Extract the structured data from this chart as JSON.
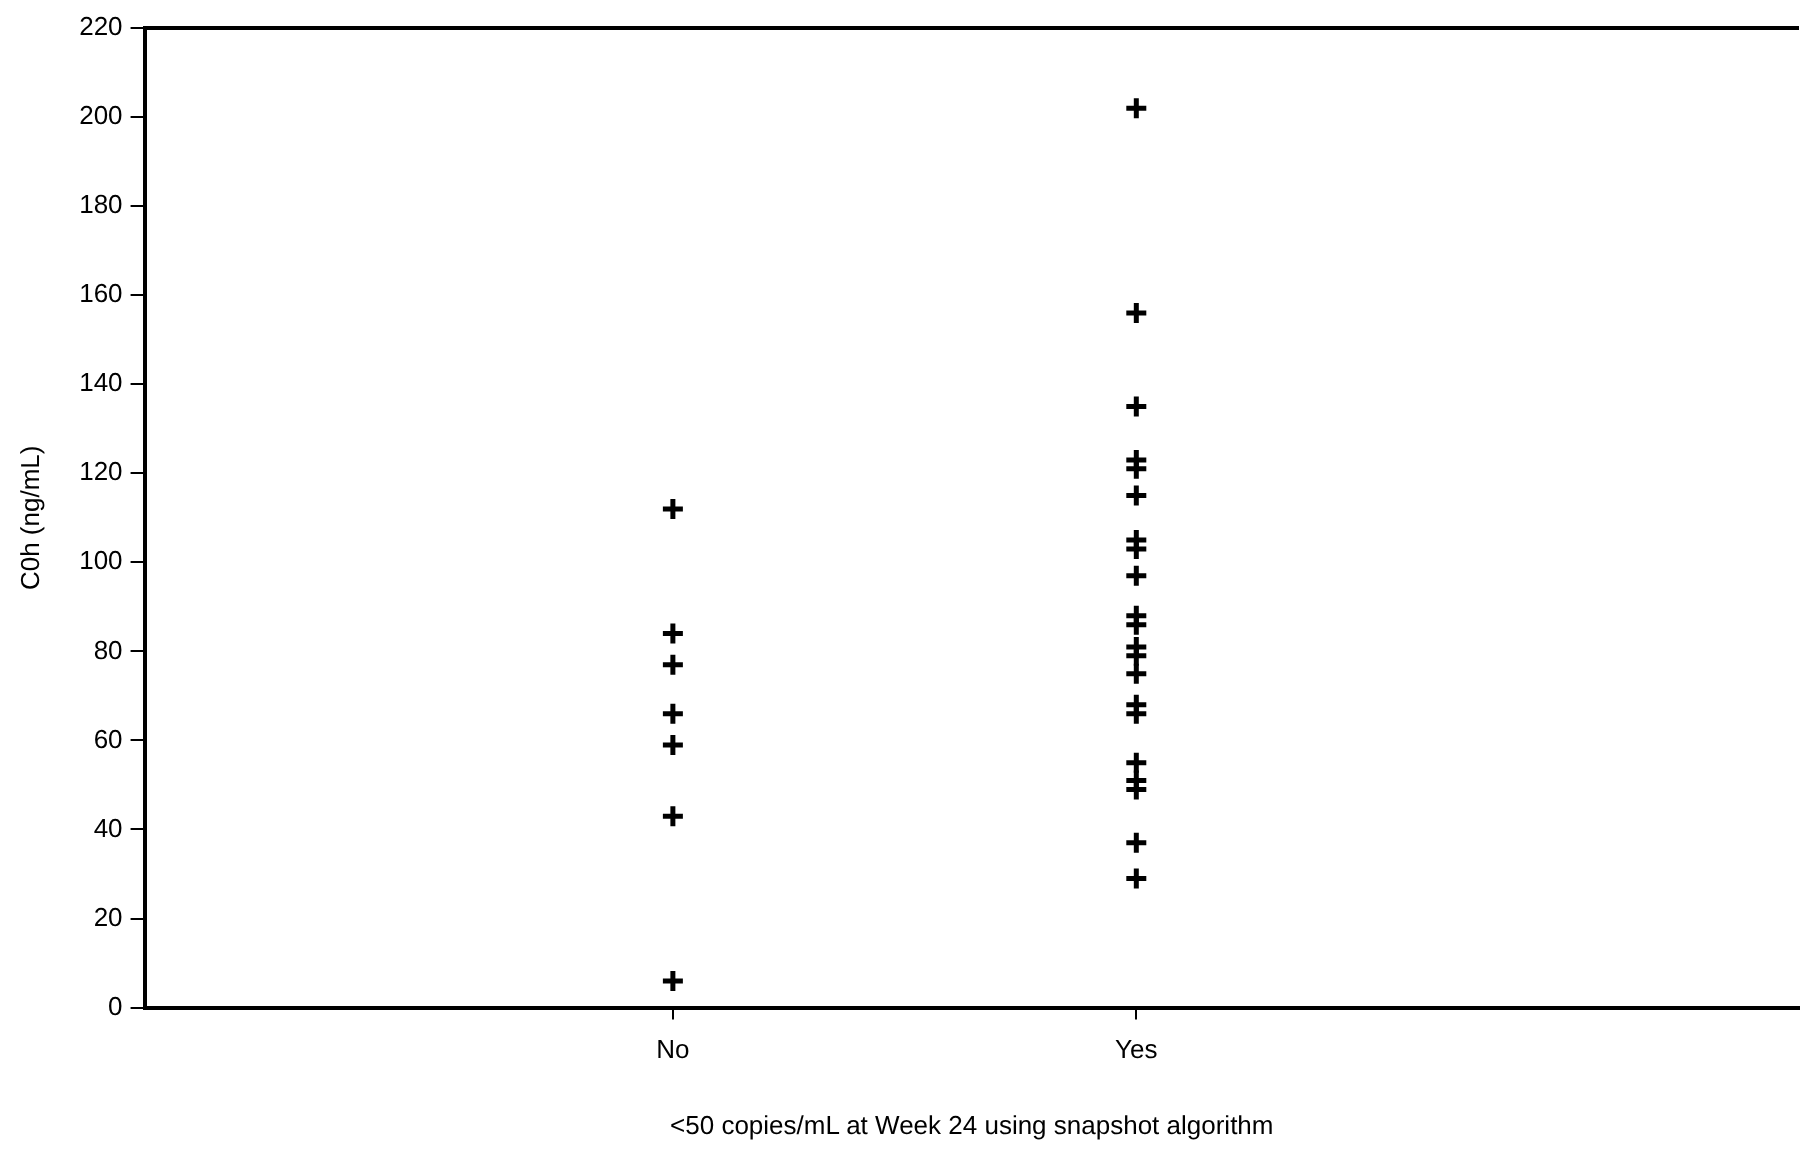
{
  "chart_data": {
    "type": "scatter",
    "xlabel": "<50 copies/mL at Week 24 using snapshot algorithm",
    "ylabel": "C0h (ng/mL)",
    "categories": [
      "No",
      "Yes"
    ],
    "ylim": [
      0,
      220
    ],
    "yticks": [
      0,
      20,
      40,
      60,
      80,
      100,
      120,
      140,
      160,
      180,
      200,
      220
    ],
    "grid": false,
    "legend": false,
    "marker": "cross",
    "series": [
      {
        "color": "#000000",
        "x": [
          "No",
          "No",
          "No",
          "No",
          "No",
          "No",
          "No"
        ],
        "values": [
          112,
          84,
          77,
          66,
          59,
          43,
          6
        ]
      },
      {
        "color": "#000000",
        "x": [
          "Yes",
          "Yes",
          "Yes",
          "Yes",
          "Yes",
          "Yes",
          "Yes",
          "Yes",
          "Yes",
          "Yes",
          "Yes",
          "Yes",
          "Yes",
          "Yes",
          "Yes",
          "Yes",
          "Yes",
          "Yes",
          "Yes",
          "Yes",
          "Yes"
        ],
        "values": [
          202,
          156,
          135,
          123,
          121,
          115,
          105,
          103,
          97,
          88,
          86,
          81,
          79,
          75,
          68,
          66,
          55,
          51,
          49,
          37,
          29
        ]
      }
    ]
  }
}
